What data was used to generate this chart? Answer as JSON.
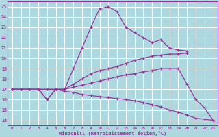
{
  "background_color": "#add8e0",
  "grid_color": "#ffffff",
  "line_color": "#993399",
  "xlabel": "Windchill (Refroidissement éolien,°C)",
  "xlim": [
    -0.5,
    23.5
  ],
  "ylim": [
    13.5,
    25.5
  ],
  "yticks": [
    14,
    15,
    16,
    17,
    18,
    19,
    20,
    21,
    22,
    23,
    24,
    25
  ],
  "xticks": [
    0,
    1,
    2,
    3,
    4,
    5,
    6,
    7,
    8,
    9,
    10,
    11,
    12,
    13,
    14,
    15,
    16,
    17,
    18,
    19,
    20,
    21,
    22,
    23
  ],
  "series": [
    {
      "x": [
        0,
        1,
        2,
        3,
        4,
        5,
        6,
        7,
        8,
        9,
        10,
        11,
        12,
        13,
        14,
        15,
        16,
        17,
        18,
        19,
        20
      ],
      "y": [
        17,
        17,
        17,
        17,
        16,
        17,
        17,
        19,
        21,
        23,
        24.8,
        25,
        24.5,
        23,
        22.5,
        22,
        21.5,
        21.8,
        21,
        20.8,
        20.7
      ]
    },
    {
      "x": [
        0,
        1,
        2,
        3,
        4,
        5,
        6,
        7,
        8,
        9,
        10,
        11,
        12,
        13,
        14,
        15,
        16,
        17,
        18,
        19,
        20
      ],
      "y": [
        17,
        17,
        17,
        17,
        17,
        17,
        17,
        17.5,
        18,
        18.5,
        18.8,
        19,
        19.2,
        19.5,
        19.8,
        20,
        20.2,
        20.3,
        20.4,
        20.4,
        20.5
      ]
    },
    {
      "x": [
        0,
        1,
        2,
        3,
        4,
        5,
        6,
        7,
        8,
        9,
        10,
        11,
        12,
        13,
        14,
        15,
        16,
        17,
        18,
        19,
        20,
        21,
        22,
        23
      ],
      "y": [
        17,
        17,
        17,
        17,
        17,
        17,
        17,
        17.2,
        17.4,
        17.6,
        17.8,
        18,
        18.2,
        18.4,
        18.5,
        18.7,
        18.8,
        19,
        19,
        19,
        17.5,
        16,
        15.2,
        14
      ]
    },
    {
      "x": [
        0,
        1,
        2,
        3,
        4,
        5,
        6,
        7,
        8,
        9,
        10,
        11,
        12,
        13,
        14,
        15,
        16,
        17,
        18,
        19,
        20,
        21,
        22,
        23
      ],
      "y": [
        17,
        17,
        17,
        17,
        16,
        17,
        16.8,
        16.7,
        16.5,
        16.4,
        16.3,
        16.2,
        16.1,
        16,
        15.9,
        15.7,
        15.5,
        15.3,
        15,
        14.8,
        14.5,
        14.2,
        14.1,
        14
      ]
    }
  ]
}
